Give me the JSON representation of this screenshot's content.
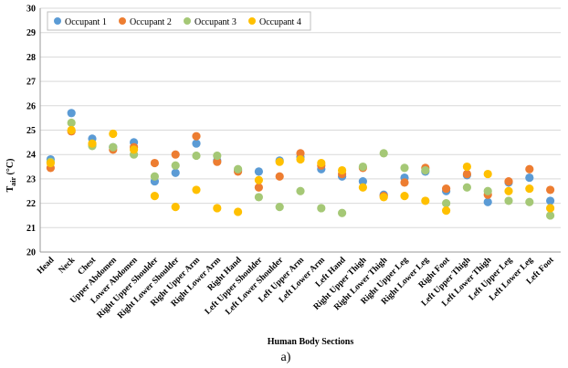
{
  "chart_data": {
    "type": "scatter",
    "xlabel": "Human Body Sections",
    "ylabel_main": "T",
    "ylabel_sub": "air",
    "ylabel_unit": " (°C)",
    "caption": "a)",
    "ylim": [
      20,
      30
    ],
    "yticks": [
      "20",
      "21",
      "22",
      "23",
      "24",
      "25",
      "26",
      "27",
      "28",
      "29",
      "30"
    ],
    "grid": true,
    "legend_position": "top-left",
    "categories": [
      "Head",
      "Neck",
      "Chest",
      "Upper Abdomen",
      "Lower Abdomen",
      "Right Upper Shoulder",
      "Right Lower Shoulder",
      "Right Upper Arm",
      "Right Lower Arm",
      "Right Hand",
      "Left Upper Shoulder",
      "Left Lower Shoulder",
      "Left Upper Arm",
      "Left Lower Arm",
      "Left Hand",
      "Right Upper Thigh",
      "Right Lower Thigh",
      "Right Upper Leg",
      "Right Lower Leg",
      "Right Foot",
      "Left Upper Thigh",
      "Left Lower Thigh",
      "Left Upper Leg",
      "Left Lower Leg",
      "Left Foot"
    ],
    "series": [
      {
        "name": "Occupant 1",
        "color": "#5b9bd5",
        "values": [
          23.8,
          25.7,
          24.65,
          24.3,
          24.5,
          22.9,
          23.25,
          24.45,
          23.75,
          23.35,
          23.3,
          23.75,
          23.9,
          23.4,
          23.1,
          22.9,
          22.35,
          23.05,
          23.3,
          22.5,
          23.15,
          22.05,
          22.85,
          23.05,
          22.1
        ]
      },
      {
        "name": "Occupant 2",
        "color": "#ed7d31",
        "values": [
          23.45,
          24.95,
          24.4,
          24.2,
          24.3,
          23.65,
          24.0,
          24.75,
          23.7,
          23.3,
          22.65,
          23.1,
          24.05,
          23.55,
          23.2,
          23.45,
          22.3,
          22.85,
          23.45,
          22.6,
          23.2,
          22.35,
          22.9,
          23.4,
          22.55
        ]
      },
      {
        "name": "Occupant 3",
        "color": "#a5c876",
        "values": [
          23.7,
          25.3,
          24.35,
          24.3,
          24.0,
          23.1,
          23.55,
          23.95,
          23.95,
          23.4,
          22.25,
          21.85,
          22.5,
          21.8,
          21.6,
          23.5,
          24.05,
          23.45,
          23.35,
          22.0,
          22.65,
          22.5,
          22.1,
          22.05,
          21.5
        ]
      },
      {
        "name": "Occupant 4",
        "color": "#ffc000",
        "values": [
          23.65,
          25.0,
          24.45,
          24.85,
          24.2,
          22.3,
          21.85,
          22.55,
          21.8,
          21.65,
          22.95,
          23.7,
          23.8,
          23.65,
          23.35,
          22.65,
          22.25,
          22.3,
          22.1,
          21.7,
          23.5,
          23.2,
          22.5,
          22.6,
          21.8
        ]
      }
    ]
  }
}
